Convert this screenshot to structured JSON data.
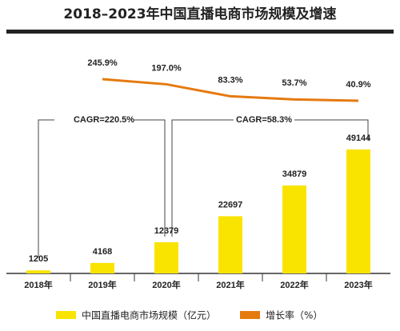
{
  "chart_data": {
    "type": "combo",
    "title": "2018–2023年中国直播电商市场规模及增速",
    "categories": [
      "2018年",
      "2019年",
      "2020年",
      "2021年",
      "2022年",
      "2023年"
    ],
    "series": [
      {
        "name": "中国直播电商市场规模（亿元）",
        "type": "bar",
        "color": "#f9e400",
        "values": [
          1205,
          4168,
          12379,
          22697,
          34879,
          49144
        ]
      },
      {
        "name": "增长率（%）",
        "type": "line",
        "axis": "y2",
        "color": "#e57a0f",
        "values": [
          null,
          245.9,
          197.0,
          83.3,
          53.7,
          40.9
        ],
        "value_labels": [
          null,
          "245.9%",
          "197.0%",
          "83.3%",
          "53.7%",
          "40.9%"
        ]
      }
    ],
    "ylim": [
      0,
      55000
    ],
    "y2lim": [
      0,
      390
    ],
    "annotations": [
      "CAGR=220.5%",
      "CAGR=58.3%"
    ],
    "legend": "bottom"
  }
}
